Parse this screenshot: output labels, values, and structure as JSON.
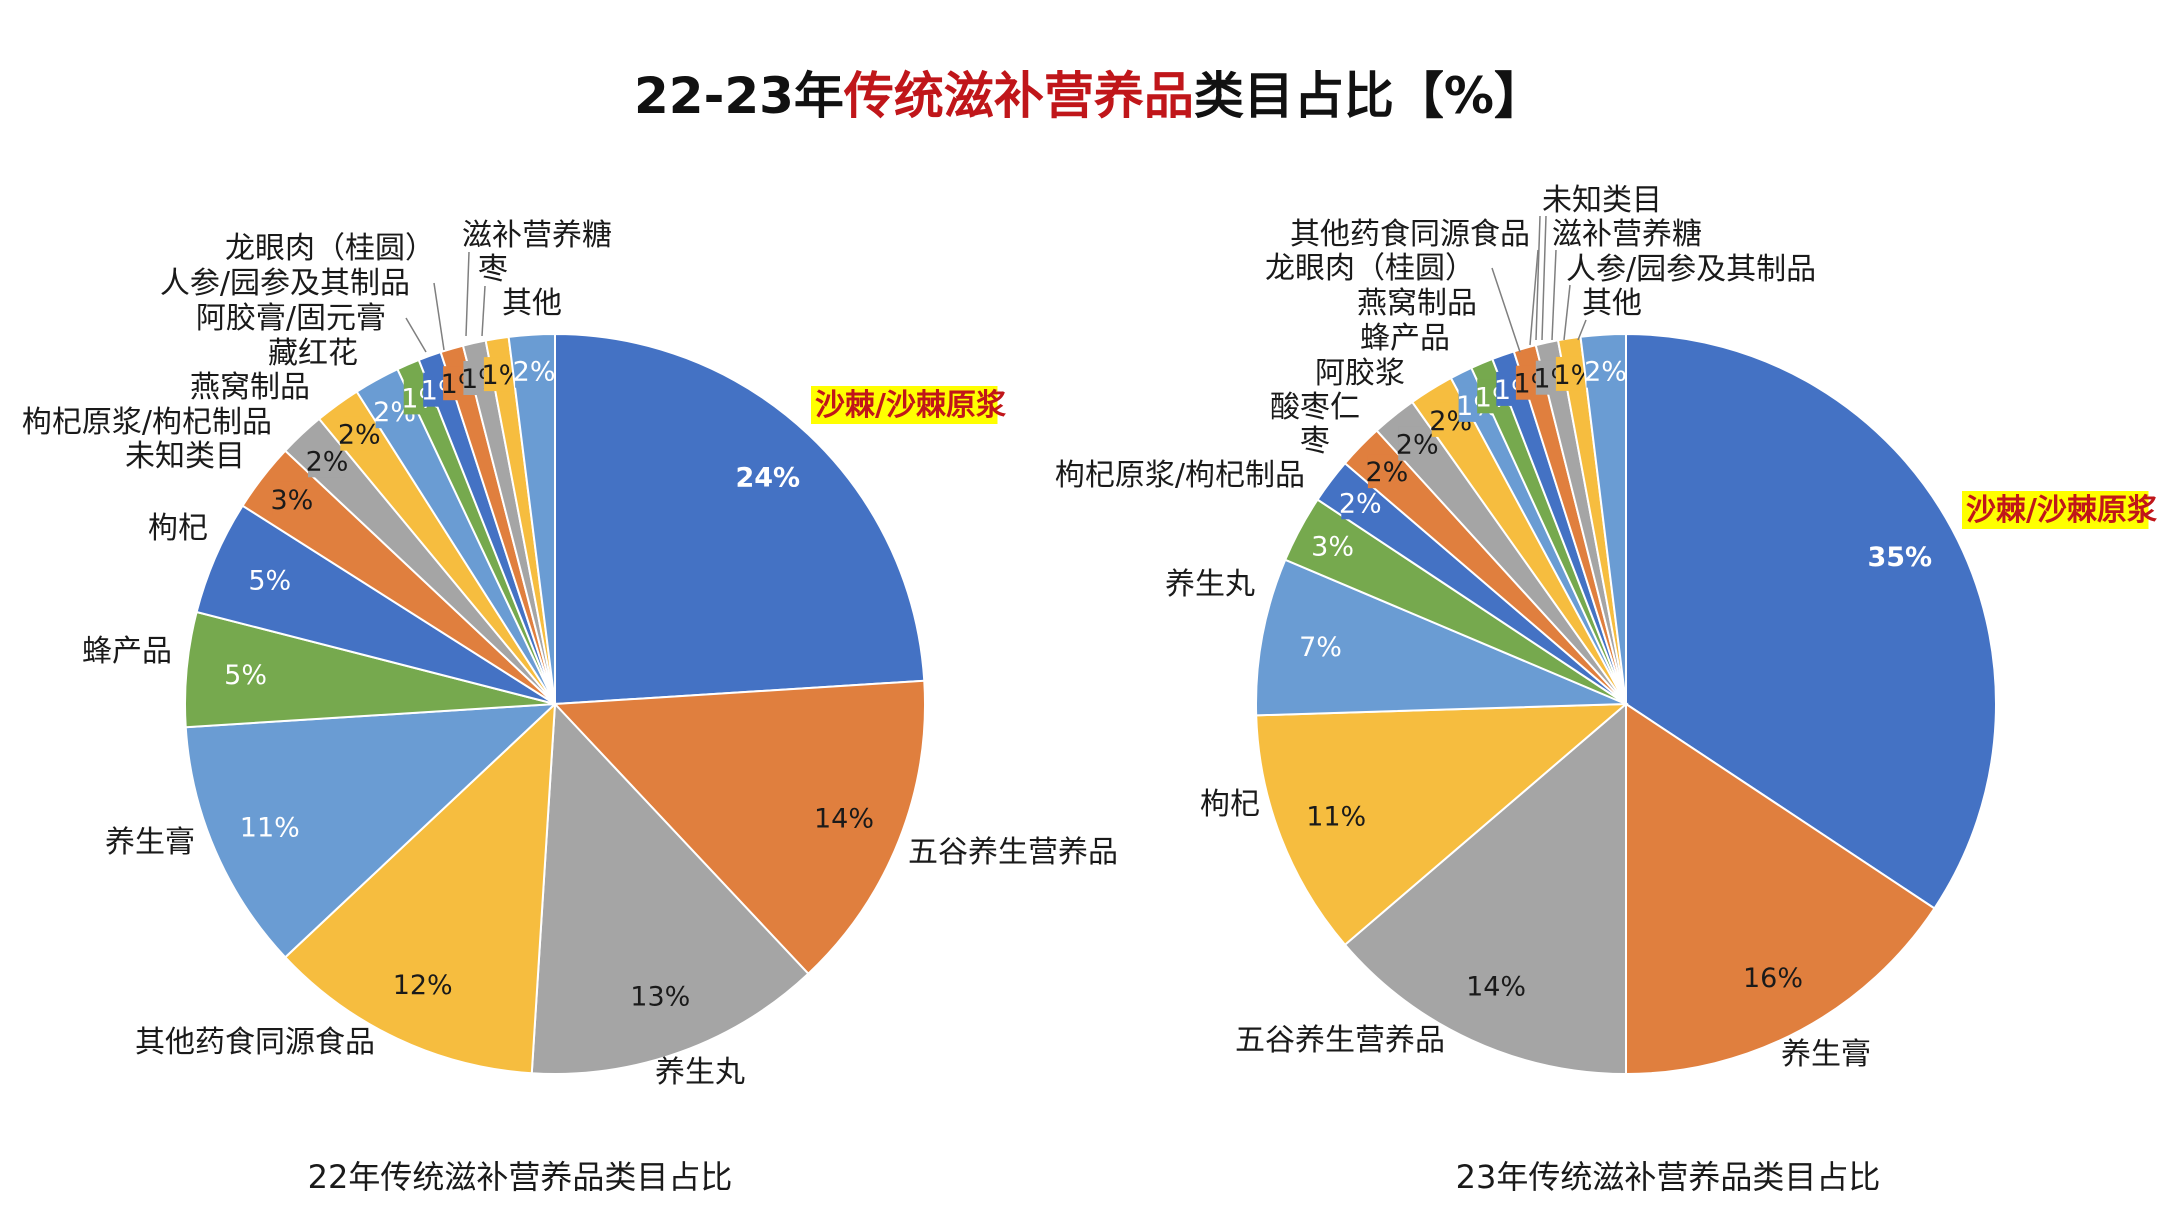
{
  "page_title": {
    "prefix": "22-23年",
    "highlight": "传统滋补营养品",
    "suffix": "类目占比【%】"
  },
  "colors": {
    "blue": "#4472c4",
    "orange": "#e07f3e",
    "gray": "#a5a5a5",
    "gold": "#f6bd3f",
    "lightblue": "#6a9cd3",
    "green": "#76a94e",
    "highlight_text": "#c0161a",
    "highlight_bg": "#ffff00"
  },
  "chart_data": [
    {
      "type": "pie",
      "title": "22年传统滋补营养品类目占比",
      "slices": [
        {
          "label": "沙棘/沙棘原浆",
          "value": 24,
          "display": "24%",
          "color": "blue",
          "highlight": true
        },
        {
          "label": "五谷养生营养品",
          "value": 14,
          "display": "14%",
          "color": "orange"
        },
        {
          "label": "养生丸",
          "value": 13,
          "display": "13%",
          "color": "gray"
        },
        {
          "label": "其他药食同源食品",
          "value": 12,
          "display": "12%",
          "color": "gold"
        },
        {
          "label": "养生膏",
          "value": 11,
          "display": "11%",
          "color": "lightblue"
        },
        {
          "label": "蜂产品",
          "value": 5,
          "display": "5%",
          "color": "green"
        },
        {
          "label": "枸杞",
          "value": 5,
          "display": "5%",
          "color": "blue"
        },
        {
          "label": "未知类目",
          "value": 3,
          "display": "3%",
          "color": "orange"
        },
        {
          "label": "枸杞原浆/枸杞制品",
          "value": 2,
          "display": "2%",
          "color": "gray"
        },
        {
          "label": "燕窝制品",
          "value": 2,
          "display": "2%",
          "color": "gold"
        },
        {
          "label": "藏红花",
          "value": 2,
          "display": "2%",
          "color": "lightblue"
        },
        {
          "label": "阿胶膏/固元膏",
          "value": 1,
          "display": "1%",
          "color": "green"
        },
        {
          "label": "人参/园参及其制品",
          "value": 1,
          "display": "1%",
          "color": "blue"
        },
        {
          "label": "龙眼肉（桂圆）",
          "value": 1,
          "display": "1%",
          "color": "orange"
        },
        {
          "label": "滋补营养糖",
          "value": 1,
          "display": "1%",
          "color": "gray"
        },
        {
          "label": "枣",
          "value": 1,
          "display": "1%",
          "color": "gold"
        },
        {
          "label": "其他",
          "value": 2,
          "display": "2%",
          "color": "lightblue"
        }
      ]
    },
    {
      "type": "pie",
      "title": "23年传统滋补营养品类目占比",
      "slices": [
        {
          "label": "沙棘/沙棘原浆",
          "value": 35,
          "display": "35%",
          "color": "blue",
          "highlight": true
        },
        {
          "label": "养生膏",
          "value": 16,
          "display": "16%",
          "color": "orange"
        },
        {
          "label": "五谷养生营养品",
          "value": 14,
          "display": "14%",
          "color": "gray"
        },
        {
          "label": "枸杞",
          "value": 11,
          "display": "11%",
          "color": "gold"
        },
        {
          "label": "养生丸",
          "value": 7,
          "display": "7%",
          "color": "lightblue"
        },
        {
          "label": "枸杞原浆/枸杞制品",
          "value": 3,
          "display": "3%",
          "color": "green"
        },
        {
          "label": "枣",
          "value": 2,
          "display": "2%",
          "color": "blue"
        },
        {
          "label": "酸枣仁",
          "value": 2,
          "display": "2%",
          "color": "orange"
        },
        {
          "label": "阿胶浆",
          "value": 2,
          "display": "2%",
          "color": "gray"
        },
        {
          "label": "蜂产品",
          "value": 2,
          "display": "2%",
          "color": "gold"
        },
        {
          "label": "燕窝制品",
          "value": 1,
          "display": "1%",
          "color": "lightblue"
        },
        {
          "label": "龙眼肉（桂圆）",
          "value": 1,
          "display": "1%",
          "color": "green"
        },
        {
          "label": "其他药食同源食品",
          "value": 1,
          "display": "1%",
          "color": "blue"
        },
        {
          "label": "未知类目",
          "value": 1,
          "display": "1%",
          "color": "orange"
        },
        {
          "label": "滋补营养糖",
          "value": 1,
          "display": "1%",
          "color": "gray"
        },
        {
          "label": "人参/园参及其制品",
          "value": 1,
          "display": "1%",
          "color": "gold"
        },
        {
          "label": "其他",
          "value": 2,
          "display": "2%",
          "color": "lightblue"
        }
      ]
    }
  ]
}
